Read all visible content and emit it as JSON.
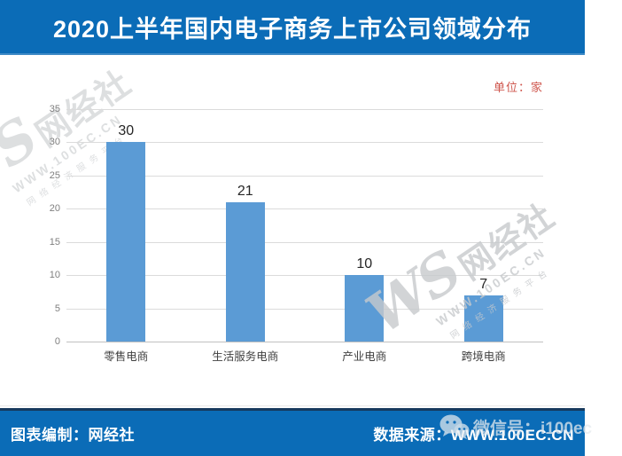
{
  "title": "2020上半年国内电子商务上市公司领域分布",
  "unit_label": "单位：家",
  "chart_data": {
    "type": "bar",
    "title": "2020上半年国内电子商务上市公司领域分布",
    "categories": [
      "零售电商",
      "生活服务电商",
      "产业电商",
      "跨境电商"
    ],
    "values": [
      30,
      21,
      10,
      7
    ],
    "xlabel": "",
    "ylabel": "",
    "unit": "单位：家",
    "ylim": [
      0,
      35
    ],
    "ytick_step": 5,
    "grid": true,
    "legend": "none",
    "bar_color": "#5B9BD5"
  },
  "watermark": {
    "logo": "WS",
    "name": "网经社",
    "site": "WWW.100EC.CN",
    "slogan": "网络经济服务平台"
  },
  "footer": {
    "left": "图表编制：网经社",
    "right": "数据来源：WWW.100EC.CN",
    "wechat": "微信号：i100ec"
  },
  "colors": {
    "banner_blue": "#0B6CB7",
    "navy_divider": "#17395D",
    "bar_blue": "#5B9BD5",
    "unit_red": "#CE544B",
    "gridline_gray": "#DBDBDB",
    "watermark_gray": "#C7CACD"
  }
}
